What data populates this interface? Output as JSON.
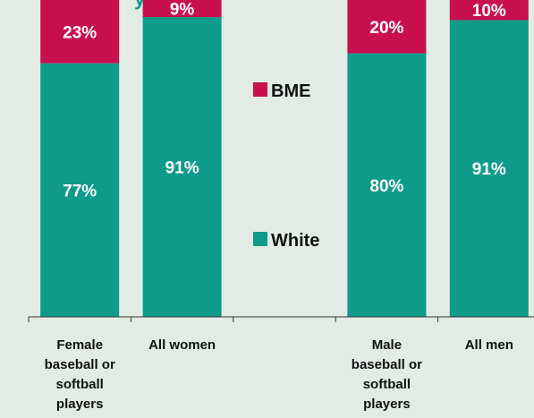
{
  "title_fragment": "y",
  "colors": {
    "bme": "#c8104e",
    "white": "#0f9b8a",
    "background": "#e2ece5",
    "axis": "#333333",
    "title": "#0f9b8a"
  },
  "chart_data": {
    "type": "bar",
    "stacked": true,
    "percent": true,
    "categories": [
      [
        "Female",
        "baseball or",
        "softball",
        "players"
      ],
      [
        "All women"
      ],
      [
        ""
      ],
      [
        "Male",
        "baseball or",
        "softball",
        "players"
      ],
      [
        "All men"
      ]
    ],
    "series": [
      {
        "name": "White",
        "values": [
          77,
          91,
          null,
          80,
          91
        ],
        "labels": [
          "77%",
          "91%",
          "",
          "80%",
          "91%"
        ]
      },
      {
        "name": "BME",
        "values": [
          23,
          9,
          null,
          20,
          10
        ],
        "labels": [
          "23%",
          "9%",
          "",
          "20%",
          "10%"
        ]
      }
    ],
    "legend": {
      "position": "center",
      "order": [
        "BME",
        "White"
      ]
    },
    "ylim": [
      0,
      100
    ],
    "grid": false,
    "xlabel": "",
    "ylabel": ""
  }
}
